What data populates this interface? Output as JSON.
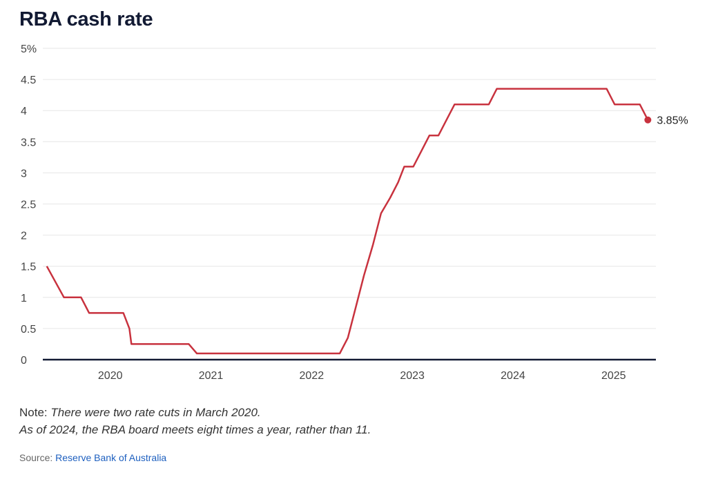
{
  "title": "RBA cash rate",
  "note": {
    "label": "Note:",
    "line1": "There were two rate cuts in March 2020.",
    "line2": "As of 2024, the RBA board meets eight times a year, rather than 11."
  },
  "source": {
    "label": "Source:",
    "link_text": "Reserve Bank of Australia"
  },
  "colors": {
    "series": "#c8323e",
    "axis": "#121a33",
    "grid": "#e6e6e6"
  },
  "chart_data": {
    "type": "line",
    "title": "RBA cash rate",
    "xlabel": "",
    "ylabel": "",
    "xlim": [
      2019.33,
      2025.42
    ],
    "ylim": [
      0,
      5
    ],
    "y_ticks": [
      0,
      0.5,
      1,
      1.5,
      2,
      2.5,
      3,
      3.5,
      4,
      4.5,
      5
    ],
    "y_tick_labels": [
      "0",
      "0.5",
      "1",
      "1.5",
      "2",
      "2.5",
      "3",
      "3.5",
      "4",
      "4.5",
      "5%"
    ],
    "x_ticks": [
      2020,
      2021,
      2022,
      2023,
      2024,
      2025
    ],
    "x_tick_labels": [
      "2020",
      "2021",
      "2022",
      "2023",
      "2024",
      "2025"
    ],
    "grid": true,
    "series": [
      {
        "x": [
          2019.37,
          2019.54,
          2019.71,
          2019.79,
          2020.13,
          2020.19,
          2020.21,
          2020.78,
          2020.86,
          2022.28,
          2022.36,
          2022.44,
          2022.52,
          2022.61,
          2022.69,
          2022.78,
          2022.86,
          2022.92,
          2023.01,
          2023.09,
          2023.17,
          2023.26,
          2023.34,
          2023.42,
          2023.76,
          2023.84,
          2024.93,
          2025.01,
          2025.17,
          2025.26,
          2025.34
        ],
        "y": [
          1.5,
          1.0,
          1.0,
          0.75,
          0.75,
          0.5,
          0.25,
          0.25,
          0.1,
          0.1,
          0.35,
          0.85,
          1.35,
          1.85,
          2.35,
          2.6,
          2.85,
          3.1,
          3.1,
          3.35,
          3.6,
          3.6,
          3.85,
          4.1,
          4.1,
          4.35,
          4.35,
          4.1,
          4.1,
          4.1,
          3.85
        ]
      }
    ],
    "end_label": "3.85%"
  }
}
